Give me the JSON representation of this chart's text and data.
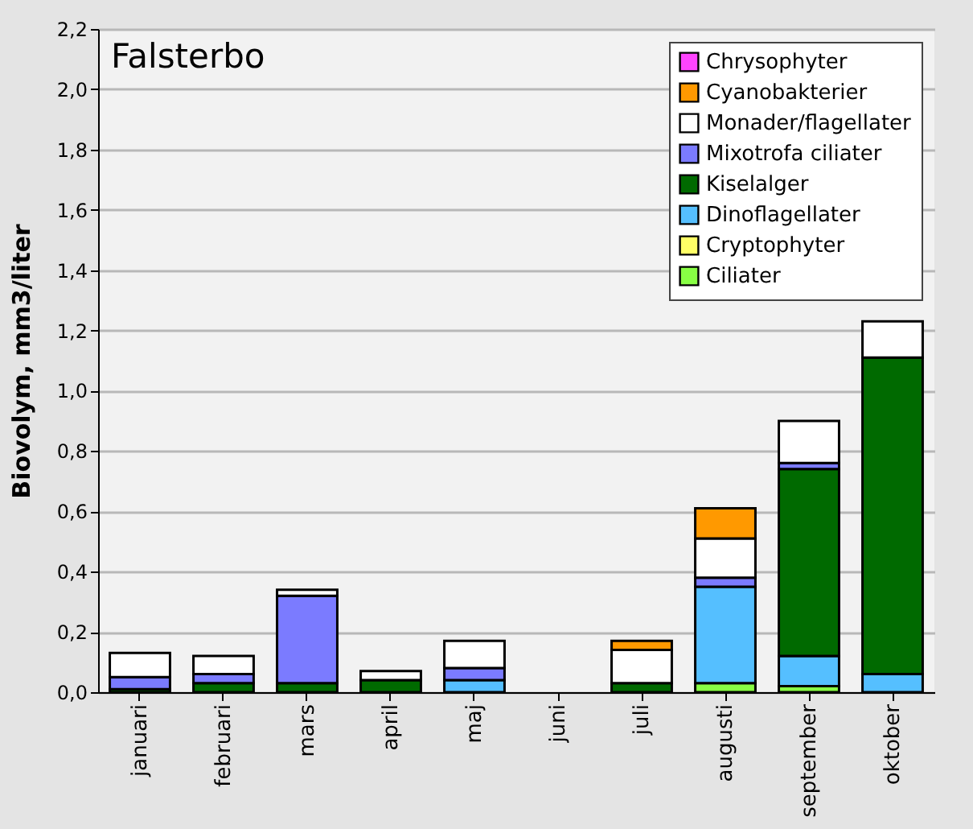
{
  "chart_data": {
    "type": "bar",
    "title": "Falsterbo",
    "ylabel": "Biovolym, mm3/liter",
    "stacked": true,
    "grid": "y",
    "legend": "top right",
    "categories": [
      "januari",
      "februari",
      "mars",
      "april",
      "maj",
      "juni",
      "juli",
      "augusti",
      "september",
      "oktober"
    ],
    "ylim": [
      0,
      2.2
    ],
    "yticks": [
      {
        "value": 0,
        "label": "0,0"
      },
      {
        "value": 0.2,
        "label": "0,2"
      },
      {
        "value": 0.4,
        "label": "0,4"
      },
      {
        "value": 0.6,
        "label": "0,6"
      },
      {
        "value": 0.8,
        "label": "0,8"
      },
      {
        "value": 1,
        "label": "1,0"
      },
      {
        "value": 1.2,
        "label": "1,2"
      },
      {
        "value": 1.4,
        "label": "1,4"
      },
      {
        "value": 1.6,
        "label": "1,6"
      },
      {
        "value": 1.8,
        "label": "1,8"
      },
      {
        "value": 2,
        "label": "2,0"
      },
      {
        "value": 2.2,
        "label": "2,2"
      }
    ],
    "series": [
      {
        "name": "Ciliater",
        "color": "#88ff44",
        "values": [
          null,
          null,
          null,
          null,
          null,
          null,
          null,
          0.03,
          0.02,
          null
        ]
      },
      {
        "name": "Cryptophyter",
        "color": "#ffff66",
        "values": [
          null,
          null,
          null,
          null,
          null,
          null,
          null,
          null,
          null,
          null
        ]
      },
      {
        "name": "Dinoflagellater",
        "color": "#55bfff",
        "values": [
          null,
          null,
          null,
          null,
          0.04,
          null,
          null,
          0.32,
          0.1,
          0.06
        ]
      },
      {
        "name": "Kiselalger",
        "color": "#006a00",
        "values": [
          0.01,
          0.03,
          0.03,
          0.04,
          null,
          null,
          0.03,
          null,
          0.62,
          1.05
        ]
      },
      {
        "name": "Mixotrofa ciliater",
        "color": "#7b7bff",
        "values": [
          0.04,
          0.03,
          0.29,
          null,
          0.04,
          null,
          null,
          0.03,
          0.02,
          null
        ]
      },
      {
        "name": "Monader/flagellater",
        "color": "#ffffff",
        "values": [
          0.08,
          0.06,
          0.02,
          0.03,
          0.09,
          null,
          0.11,
          0.13,
          0.14,
          0.12
        ]
      },
      {
        "name": "Cyanobakterier",
        "color": "#ff9900",
        "values": [
          null,
          null,
          null,
          null,
          null,
          null,
          0.03,
          0.1,
          null,
          null
        ]
      },
      {
        "name": "Chrysophyter",
        "color": "#ff44ff",
        "values": [
          null,
          null,
          null,
          null,
          null,
          null,
          null,
          null,
          null,
          null
        ]
      }
    ]
  }
}
